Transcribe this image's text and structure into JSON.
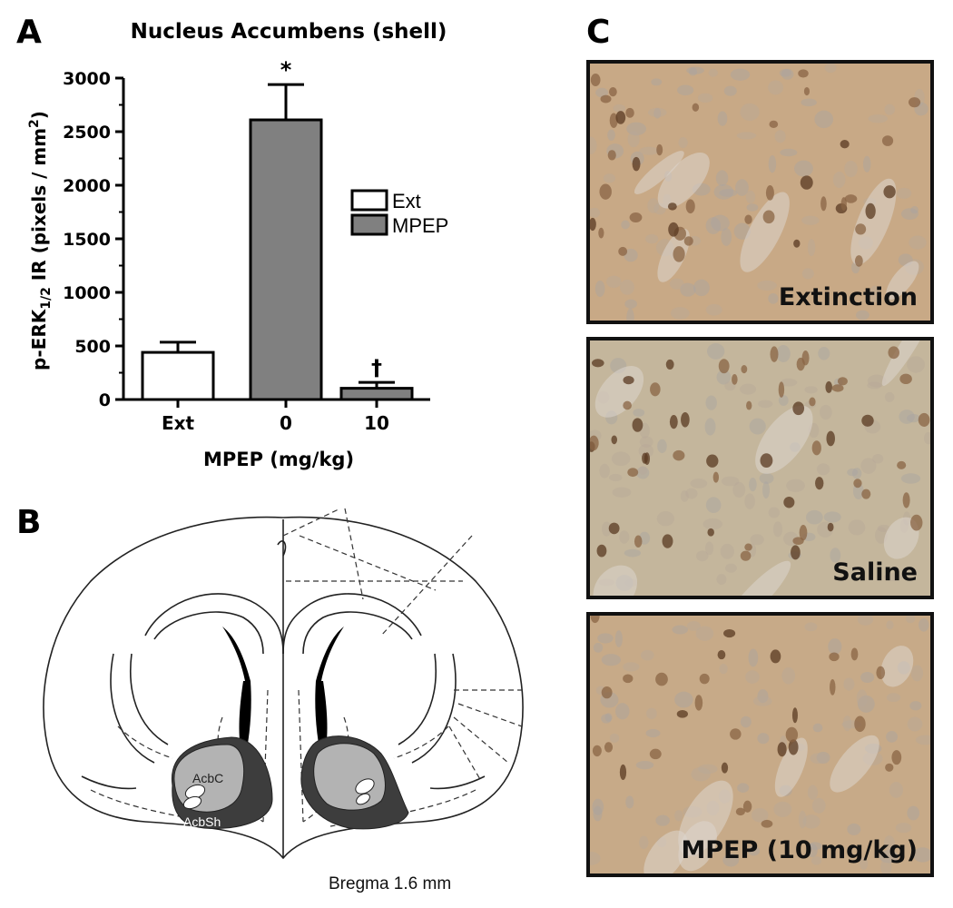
{
  "panels": {
    "a": "A",
    "b": "B",
    "c": "C"
  },
  "chart_data": {
    "type": "bar",
    "title": "Nucleus Accumbens (shell)",
    "ylabel_main": "p-ERK",
    "ylabel_sub": "1/2",
    "ylabel_rest": " IR (pixels / mm",
    "ylabel_sup": "2",
    "ylabel_end": ")",
    "xlabel": "MPEP  (mg/kg)",
    "categories": [
      "Ext",
      "0",
      "10"
    ],
    "values": [
      440,
      2610,
      105
    ],
    "errors": [
      95,
      330,
      55
    ],
    "colors": [
      "#ffffff",
      "#808080",
      "#808080"
    ],
    "annotations": [
      "",
      "*",
      "†"
    ],
    "ylim": [
      0,
      3000
    ],
    "yticks": [
      "0",
      "500",
      "1000",
      "1500",
      "2000",
      "2500",
      "3000"
    ],
    "legend": [
      {
        "name": "Ext",
        "color": "#ffffff"
      },
      {
        "name": "MPEP",
        "color": "#808080"
      }
    ],
    "legend_position": "right"
  },
  "brain": {
    "core_label": "AcbC",
    "shell_label": "AcbSh",
    "bregma_label": "Bregma 1.6 mm"
  },
  "micrographs": [
    {
      "label": "Extinction"
    },
    {
      "label": "Saline"
    },
    {
      "label": "MPEP (10 mg/kg)"
    }
  ]
}
